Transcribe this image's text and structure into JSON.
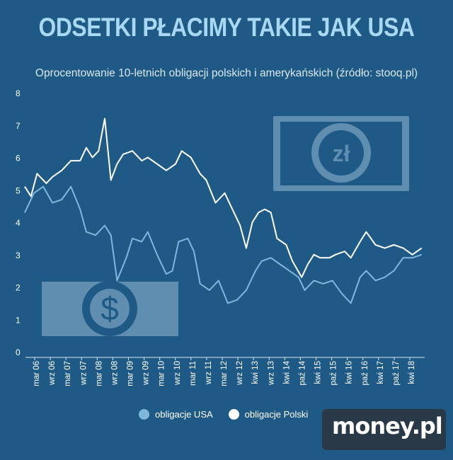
{
  "title": "ODSETKI PŁACIMY TAKIE JAK USA",
  "subtitle": "Oprocentowanie 10-letnich obligacji polskich i amerykańskich (źródło: stooq.pl)",
  "brand": "money.pl",
  "colors": {
    "background": "#1f5a87",
    "usa": "#7fb7dc",
    "polski": "#ffffff",
    "title": "#a9d8f2"
  },
  "icons": {
    "banknote_pln": "zł",
    "banknote_usd": "$"
  },
  "legend": [
    {
      "label": "obligacje USA",
      "color": "#7fb7dc"
    },
    {
      "label": "obligacje Polski",
      "color": "#ffffff"
    }
  ],
  "chart_data": {
    "type": "line",
    "ylim": [
      0,
      8
    ],
    "yticks": [
      "0",
      "1",
      "2",
      "3",
      "4",
      "5",
      "6",
      "7",
      "8"
    ],
    "xticks": [
      "mar 06",
      "wrz 06",
      "mar 07",
      "wrz 07",
      "mar 08",
      "wrz 08",
      "mar 09",
      "wrz 09",
      "mar 10",
      "wrz 10",
      "mar 11",
      "wrz 11",
      "mar 12",
      "wrz 12",
      "kwi 13",
      "wrz 13",
      "kwi 14",
      "paź 14",
      "kwi 15",
      "paź 15",
      "kwi 16",
      "paź 16",
      "kwi 17",
      "paź 17",
      "kwi 18"
    ],
    "x_range": [
      2006.0,
      2019.0
    ],
    "series": [
      {
        "name": "obligacje USA",
        "color": "#7fb7dc",
        "x": [
          2006.0,
          2006.3,
          2006.6,
          2006.9,
          2007.2,
          2007.5,
          2007.8,
          2008.0,
          2008.3,
          2008.6,
          2008.8,
          2009.0,
          2009.3,
          2009.5,
          2009.8,
          2010.0,
          2010.3,
          2010.6,
          2010.8,
          2011.0,
          2011.3,
          2011.5,
          2011.7,
          2012.0,
          2012.3,
          2012.6,
          2012.9,
          2013.2,
          2013.5,
          2013.7,
          2014.0,
          2014.3,
          2014.6,
          2014.9,
          2015.1,
          2015.4,
          2015.7,
          2016.0,
          2016.3,
          2016.6,
          2016.9,
          2017.1,
          2017.4,
          2017.7,
          2018.0,
          2018.3,
          2018.6,
          2018.9
        ],
        "values": [
          4.3,
          4.9,
          5.1,
          4.6,
          4.7,
          5.1,
          4.4,
          3.7,
          3.6,
          3.9,
          3.6,
          2.2,
          2.9,
          3.5,
          3.4,
          3.7,
          3.0,
          2.4,
          2.5,
          3.4,
          3.5,
          3.1,
          2.1,
          1.9,
          2.2,
          1.5,
          1.6,
          1.9,
          2.5,
          2.8,
          2.9,
          2.7,
          2.5,
          2.3,
          1.9,
          2.2,
          2.1,
          2.2,
          1.8,
          1.5,
          2.3,
          2.5,
          2.2,
          2.3,
          2.5,
          2.9,
          2.9,
          3.0
        ]
      },
      {
        "name": "obligacje Polski",
        "color": "#ffffff",
        "x": [
          2006.0,
          2006.2,
          2006.4,
          2006.7,
          2006.9,
          2007.2,
          2007.5,
          2007.8,
          2008.0,
          2008.2,
          2008.4,
          2008.6,
          2008.8,
          2009.0,
          2009.2,
          2009.5,
          2009.8,
          2010.0,
          2010.3,
          2010.6,
          2010.9,
          2011.1,
          2011.4,
          2011.7,
          2011.9,
          2012.2,
          2012.5,
          2012.8,
          2013.0,
          2013.2,
          2013.4,
          2013.6,
          2013.8,
          2014.0,
          2014.2,
          2014.5,
          2014.7,
          2015.0,
          2015.2,
          2015.4,
          2015.6,
          2015.9,
          2016.1,
          2016.4,
          2016.6,
          2016.9,
          2017.1,
          2017.4,
          2017.7,
          2018.0,
          2018.3,
          2018.6,
          2018.9
        ],
        "values": [
          5.1,
          4.8,
          5.5,
          5.2,
          5.4,
          5.6,
          5.9,
          5.9,
          6.3,
          6.0,
          6.2,
          7.2,
          5.3,
          5.8,
          6.1,
          6.2,
          5.9,
          6.0,
          5.8,
          5.6,
          5.8,
          6.2,
          6.0,
          5.5,
          5.3,
          4.6,
          4.9,
          4.3,
          3.9,
          3.2,
          4.0,
          4.3,
          4.4,
          4.3,
          3.5,
          3.3,
          2.8,
          2.3,
          2.7,
          3.0,
          2.9,
          2.9,
          3.0,
          3.1,
          2.9,
          3.4,
          3.7,
          3.3,
          3.2,
          3.3,
          3.2,
          3.0,
          3.2
        ]
      }
    ]
  }
}
